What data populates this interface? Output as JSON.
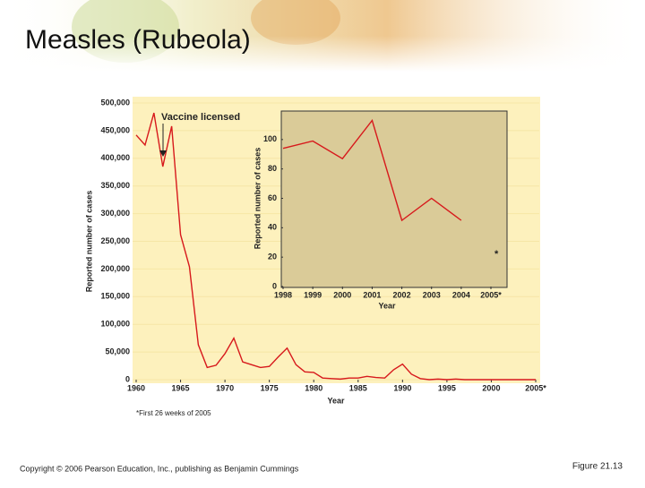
{
  "title": "Measles (Rubeola)",
  "copyright": "Copyright © 2006 Pearson Education, Inc., publishing as Benjamin Cummings",
  "figure_label": "Figure 21.13",
  "chart_data": [
    {
      "type": "line",
      "x_label": "Year",
      "y_label": "Reported number of cases",
      "annotation": "Vaccine licensed",
      "footnote": "*First 26 weeks of 2005",
      "x": [
        1960,
        1961,
        1962,
        1963,
        1964,
        1965,
        1966,
        1967,
        1968,
        1969,
        1970,
        1971,
        1972,
        1973,
        1974,
        1975,
        1976,
        1977,
        1978,
        1979,
        1980,
        1981,
        1982,
        1983,
        1984,
        1985,
        1986,
        1987,
        1988,
        1989,
        1990,
        1991,
        1992,
        1993,
        1994,
        1995,
        1996,
        1997,
        1998,
        1999,
        2000,
        2001,
        2002,
        2003,
        2004,
        2005
      ],
      "series": [
        {
          "name": "Reported cases",
          "color": "#d7191c",
          "values": [
            442000,
            424000,
            482000,
            385000,
            458000,
            262000,
            204000,
            63000,
            22000,
            26000,
            47000,
            75000,
            32000,
            27000,
            22000,
            24000,
            41000,
            57000,
            27000,
            14000,
            13000,
            3000,
            2000,
            1000,
            3000,
            3000,
            6000,
            4000,
            3000,
            18000,
            28000,
            10000,
            2000,
            0,
            1000,
            0,
            1000,
            0,
            0,
            0,
            0,
            0,
            0,
            0,
            0,
            0
          ]
        }
      ],
      "xlim": [
        1960,
        2005
      ],
      "ylim": [
        0,
        500000
      ],
      "xticks": [
        1960,
        1965,
        1970,
        1975,
        1980,
        1985,
        1990,
        1995,
        2000,
        {
          "value": 2005,
          "label": "2005*"
        }
      ],
      "yticks": [
        0,
        {
          "value": 50000,
          "label": "50,000"
        },
        {
          "value": 100000,
          "label": "100,000"
        },
        {
          "value": 150000,
          "label": "150,000"
        },
        {
          "value": 200000,
          "label": "200,000"
        },
        {
          "value": 250000,
          "label": "250,000"
        },
        {
          "value": 300000,
          "label": "300,000"
        },
        {
          "value": 350000,
          "label": "350,000"
        },
        {
          "value": 400000,
          "label": "400,000"
        },
        {
          "value": 450000,
          "label": "450,000"
        },
        {
          "value": 500000,
          "label": "500,000"
        }
      ],
      "grid": true
    },
    {
      "type": "line",
      "x_label": "Year",
      "y_label": "Reported number of cases",
      "note": "*",
      "x": [
        1998,
        1999,
        2000,
        2001,
        2002,
        2003,
        2004
      ],
      "series": [
        {
          "name": "Reported cases",
          "color": "#d7191c",
          "values": [
            94,
            99,
            87,
            113,
            45,
            60,
            45
          ]
        }
      ],
      "xlim": [
        1998,
        2005
      ],
      "ylim": [
        0,
        120
      ],
      "xticks": [
        1998,
        1999,
        2000,
        2001,
        2002,
        2003,
        2004,
        {
          "value": 2005,
          "label": "2005*"
        }
      ],
      "yticks": [
        0,
        20,
        40,
        60,
        80,
        100
      ],
      "grid": false
    }
  ]
}
